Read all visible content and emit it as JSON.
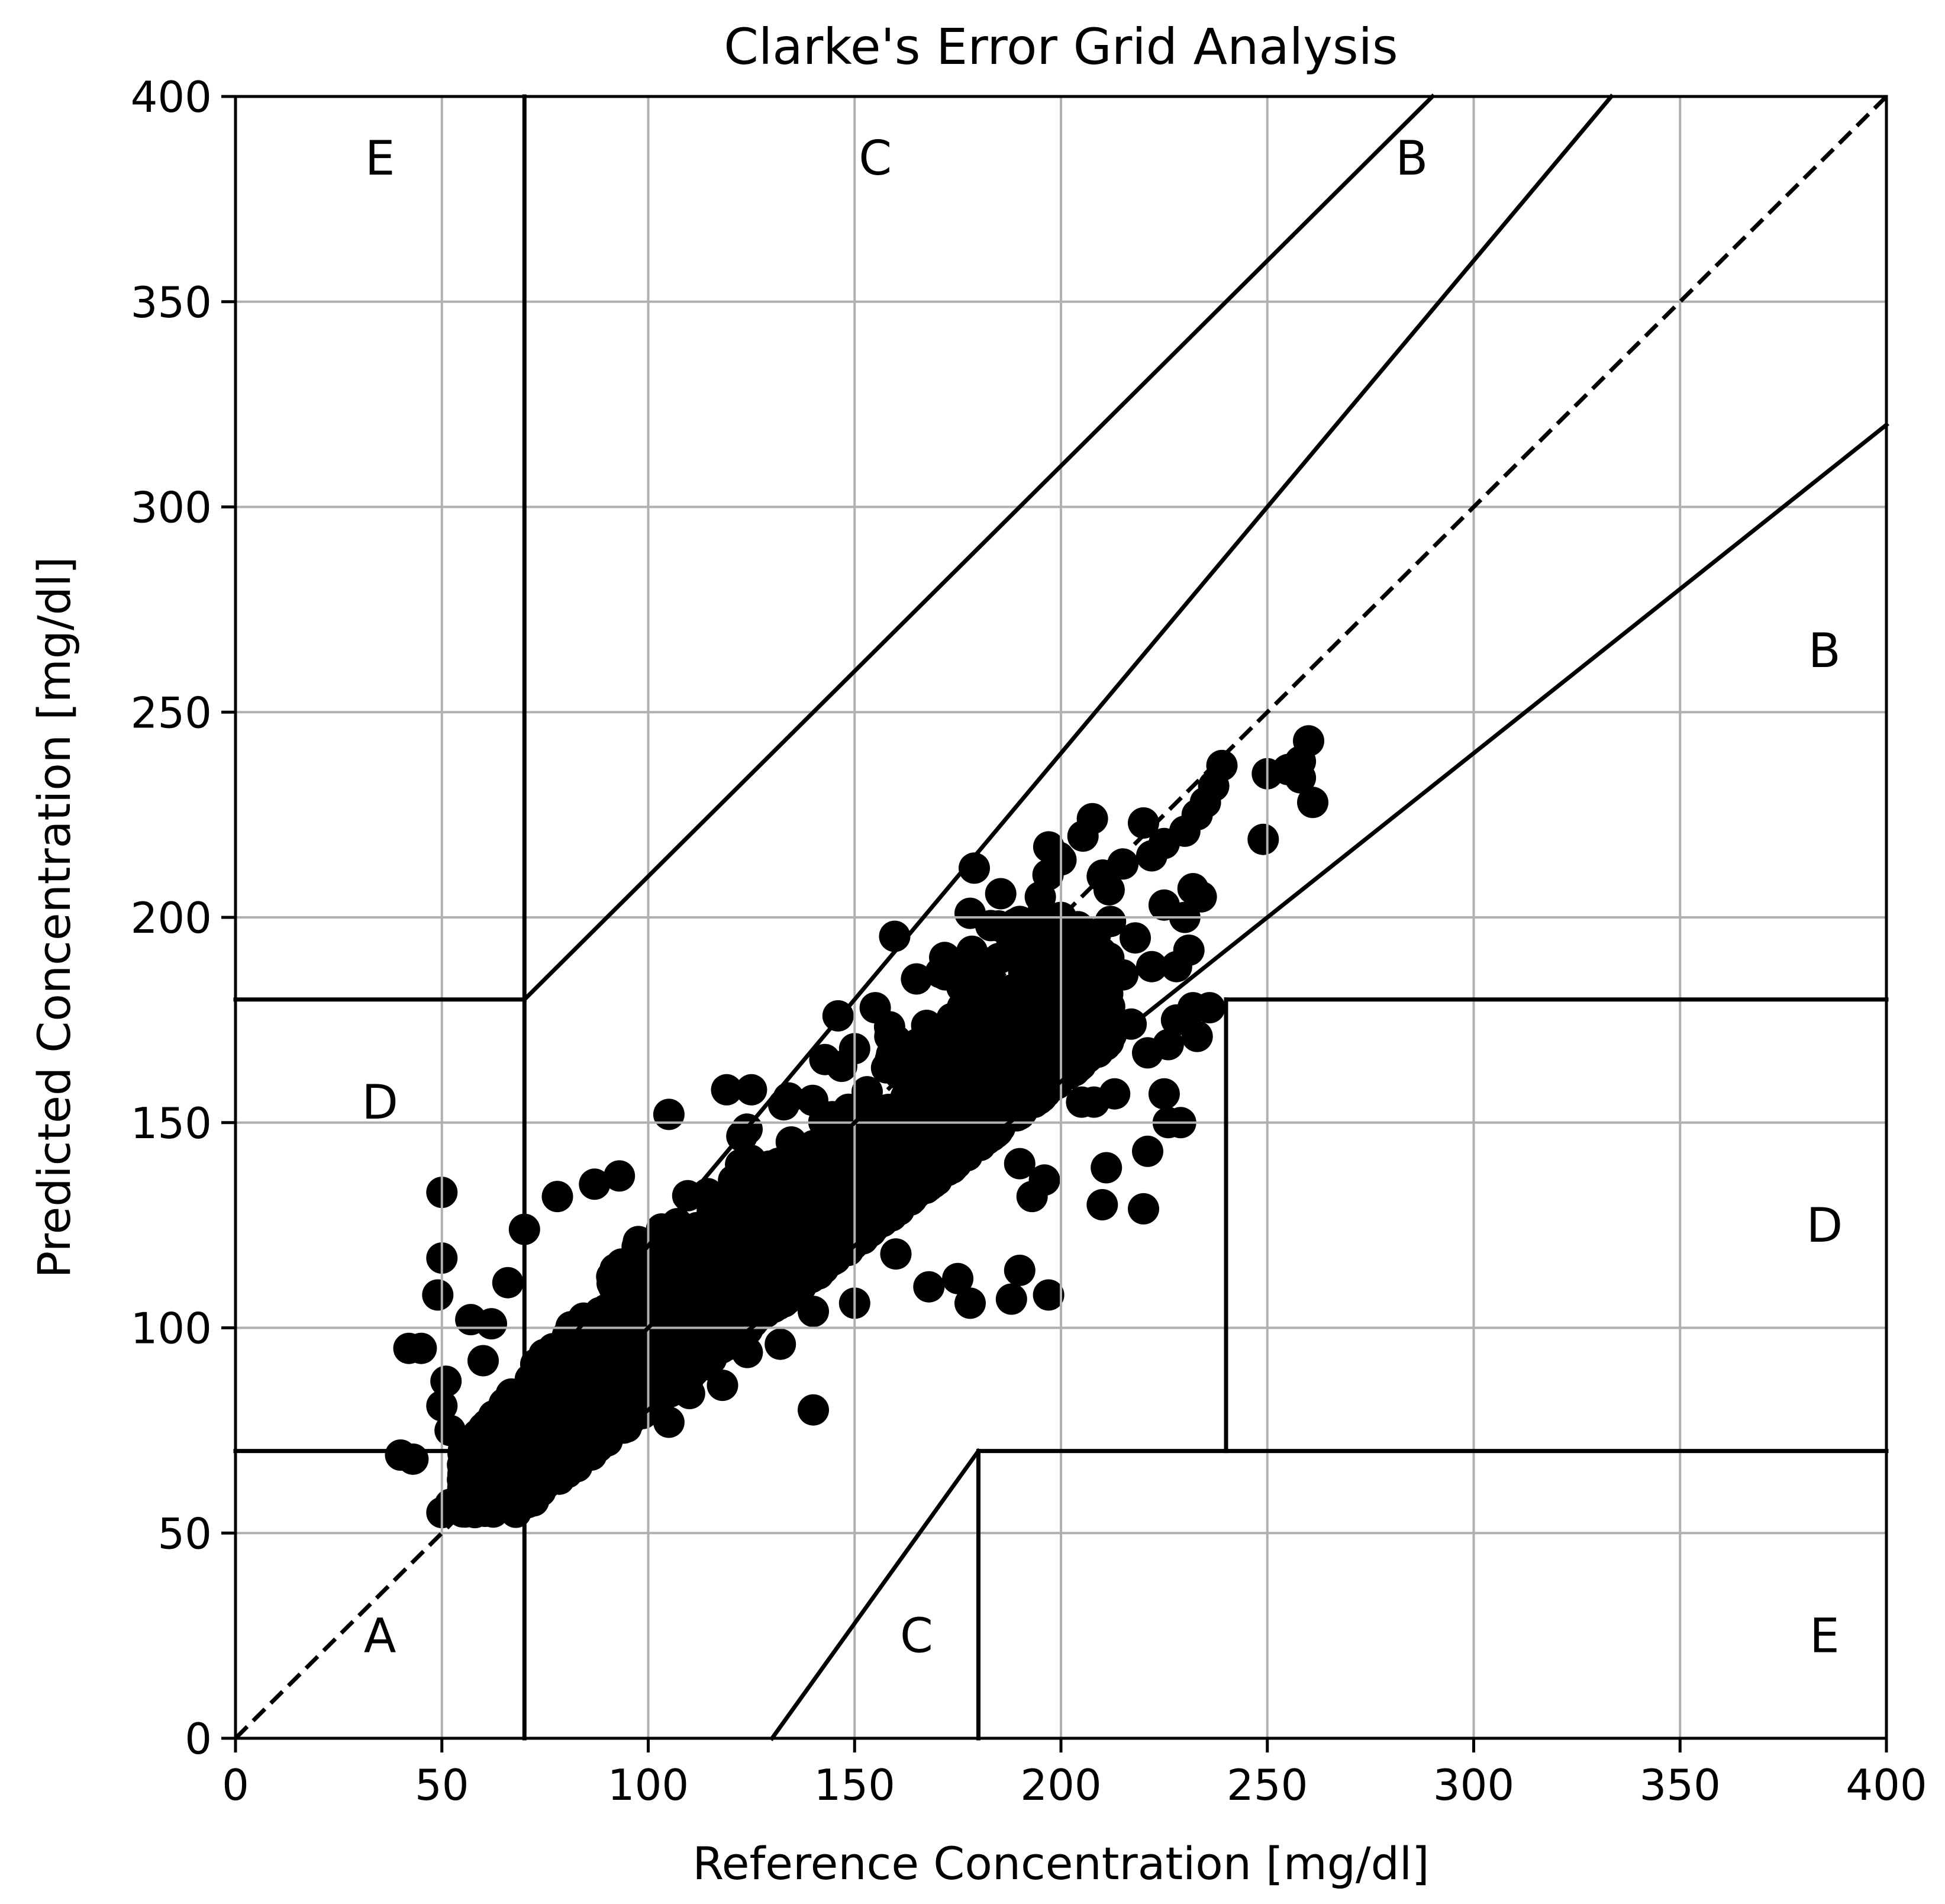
{
  "chart_data": {
    "type": "scatter",
    "title": "Clarke's Error Grid Analysis",
    "xlabel": "Reference Concentration [mg/dl]",
    "ylabel": "Predicted Concentration [mg/dl]",
    "xlim": [
      0,
      400
    ],
    "ylim": [
      0,
      400
    ],
    "xticks": [
      0,
      50,
      100,
      150,
      200,
      250,
      300,
      350,
      400
    ],
    "yticks": [
      0,
      50,
      100,
      150,
      200,
      250,
      300,
      350,
      400
    ],
    "grid": true,
    "legend": null,
    "marker": {
      "shape": "circle",
      "color": "#000000",
      "approx_radius_units": 3.8
    },
    "identity_line": {
      "from": [
        0,
        0
      ],
      "to": [
        400,
        400
      ],
      "style": "dashed"
    },
    "zone_lines": [
      {
        "from": [
          0,
          70
        ],
        "to": [
          58.33,
          70
        ]
      },
      {
        "from": [
          70,
          84
        ],
        "to": [
          70,
          400
        ]
      },
      {
        "from": [
          70,
          0
        ],
        "to": [
          70,
          56
        ]
      },
      {
        "from": [
          70,
          56
        ],
        "to": [
          400,
          320
        ]
      },
      {
        "from": [
          58.33,
          70
        ],
        "to": [
          400,
          400
        ],
        "note": "upper A boundary y=1.2x (drawn from ~(58,70) to (333,400))"
      },
      {
        "from": [
          0,
          180
        ],
        "to": [
          70,
          180
        ]
      },
      {
        "from": [
          70,
          180
        ],
        "to": [
          290,
          400
        ]
      },
      {
        "from": [
          130,
          0
        ],
        "to": [
          180,
          70
        ]
      },
      {
        "from": [
          180,
          0
        ],
        "to": [
          180,
          70
        ]
      },
      {
        "from": [
          180,
          70
        ],
        "to": [
          400,
          70
        ]
      },
      {
        "from": [
          240,
          70
        ],
        "to": [
          240,
          180
        ]
      },
      {
        "from": [
          240,
          180
        ],
        "to": [
          400,
          180
        ]
      }
    ],
    "zone_labels": [
      {
        "label": "A",
        "x": 35,
        "y": 25
      },
      {
        "label": "B",
        "x": 285,
        "y": 385
      },
      {
        "label": "B",
        "x": 385,
        "y": 265
      },
      {
        "label": "C",
        "x": 155,
        "y": 385
      },
      {
        "label": "C",
        "x": 165,
        "y": 25
      },
      {
        "label": "D",
        "x": 35,
        "y": 155
      },
      {
        "label": "D",
        "x": 385,
        "y": 125
      },
      {
        "label": "E",
        "x": 35,
        "y": 385
      },
      {
        "label": "E",
        "x": 385,
        "y": 25
      }
    ],
    "dense_cloud": {
      "description": "Dense band of thousands of points roughly along y = 0.65x + 30 from x≈50 to x≈230",
      "x_range": [
        50,
        235
      ],
      "trend_slope": 0.72,
      "trend_intercept": 22,
      "spread": 14,
      "count": 2600
    },
    "points": [
      [
        50,
        133
      ],
      [
        50,
        117
      ],
      [
        49,
        108
      ],
      [
        42,
        95
      ],
      [
        45,
        95
      ],
      [
        40,
        69
      ],
      [
        43,
        68
      ],
      [
        50,
        81
      ],
      [
        52,
        57
      ],
      [
        50,
        55
      ],
      [
        57,
        102
      ],
      [
        62,
        101
      ],
      [
        66,
        111
      ],
      [
        70,
        124
      ],
      [
        78,
        132
      ],
      [
        87,
        135
      ],
      [
        93,
        137
      ],
      [
        105,
        152
      ],
      [
        105,
        77
      ],
      [
        140,
        80
      ],
      [
        146,
        176
      ],
      [
        119,
        158
      ],
      [
        125,
        158
      ],
      [
        134,
        156
      ],
      [
        143,
        140
      ],
      [
        100,
        115
      ],
      [
        179,
        212
      ],
      [
        178,
        201
      ],
      [
        183,
        198
      ],
      [
        190,
        199
      ],
      [
        195,
        205
      ],
      [
        200,
        214
      ],
      [
        210,
        210
      ],
      [
        215,
        213
      ],
      [
        220,
        223
      ],
      [
        222,
        215
      ],
      [
        225,
        218
      ],
      [
        230,
        221
      ],
      [
        233,
        225
      ],
      [
        235,
        228
      ],
      [
        237,
        232
      ],
      [
        239,
        237
      ],
      [
        249,
        219
      ],
      [
        250,
        235
      ],
      [
        255,
        236
      ],
      [
        258,
        238
      ],
      [
        260,
        243
      ],
      [
        261,
        228
      ],
      [
        258,
        234
      ],
      [
        230,
        200
      ],
      [
        234,
        205
      ],
      [
        232,
        207
      ],
      [
        225,
        203
      ],
      [
        218,
        195
      ],
      [
        215,
        186
      ],
      [
        222,
        188
      ],
      [
        228,
        188
      ],
      [
        231,
        192
      ],
      [
        232,
        178
      ],
      [
        236,
        178
      ],
      [
        233,
        171
      ],
      [
        228,
        175
      ],
      [
        226,
        169
      ],
      [
        221,
        167
      ],
      [
        217,
        174
      ],
      [
        207,
        169
      ],
      [
        205,
        155
      ],
      [
        208,
        155
      ],
      [
        213,
        157
      ],
      [
        225,
        157
      ],
      [
        229,
        150
      ],
      [
        226,
        150
      ],
      [
        221,
        143
      ],
      [
        211,
        139
      ],
      [
        210,
        130
      ],
      [
        220,
        129
      ],
      [
        196,
        136
      ],
      [
        193,
        132
      ],
      [
        190,
        140
      ],
      [
        190,
        114
      ],
      [
        188,
        107
      ],
      [
        197,
        108
      ],
      [
        178,
        106
      ],
      [
        175,
        112
      ],
      [
        168,
        110
      ],
      [
        160,
        118
      ],
      [
        150,
        106
      ],
      [
        140,
        104
      ],
      [
        132,
        96
      ],
      [
        124,
        94
      ],
      [
        118,
        86
      ],
      [
        110,
        84
      ],
      [
        100,
        82
      ],
      [
        91,
        76
      ],
      [
        84,
        72
      ],
      [
        75,
        66
      ],
      [
        68,
        62
      ],
      [
        62,
        58
      ],
      [
        58,
        55
      ],
      [
        55,
        60
      ],
      [
        55,
        63
      ],
      [
        56,
        66
      ],
      [
        52,
        75
      ],
      [
        51,
        87
      ],
      [
        60,
        92
      ],
      [
        165,
        185
      ],
      [
        172,
        186
      ],
      [
        176,
        183
      ],
      [
        160,
        170
      ],
      [
        155,
        178
      ],
      [
        150,
        168
      ],
      [
        185,
        190
      ],
      [
        188,
        195
      ],
      [
        200,
        200
      ],
      [
        205,
        197
      ],
      [
        195,
        186
      ],
      [
        180,
        176
      ],
      [
        170,
        165
      ],
      [
        185,
        160
      ],
      [
        190,
        170
      ],
      [
        198,
        182
      ],
      [
        202,
        190
      ],
      [
        212,
        199
      ]
    ]
  },
  "labels": {
    "title": "Clarke's Error Grid Analysis",
    "xlabel": "Reference Concentration [mg/dl]",
    "ylabel": "Predicted Concentration [mg/dl]"
  }
}
